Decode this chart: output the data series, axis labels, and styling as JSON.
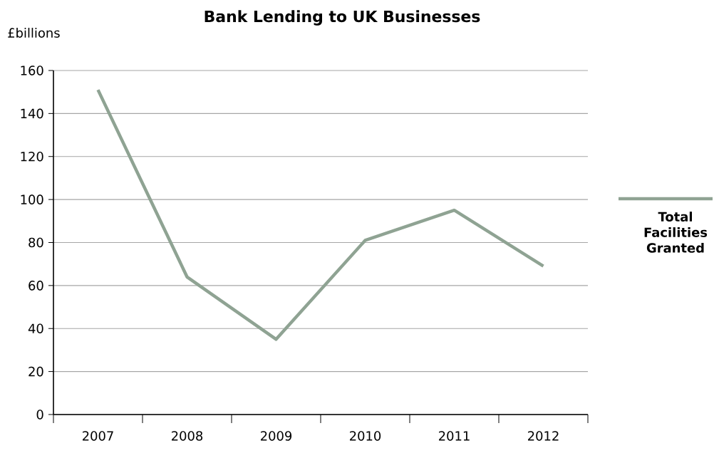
{
  "chart_data": {
    "type": "line",
    "title": "Bank Lending to UK Businesses",
    "ylabel": "£billions",
    "categories": [
      "2007",
      "2008",
      "2009",
      "2010",
      "2011",
      "2012"
    ],
    "series": [
      {
        "name": "Total Facilities Granted",
        "color": "#8fa393",
        "values": [
          151,
          64,
          35,
          81,
          95,
          69
        ]
      }
    ],
    "ylim": [
      0,
      160
    ],
    "yticks": [
      0,
      20,
      40,
      60,
      80,
      100,
      120,
      140,
      160
    ],
    "grid": "y",
    "legend": "right",
    "marker": "none",
    "line_style": "solid"
  }
}
